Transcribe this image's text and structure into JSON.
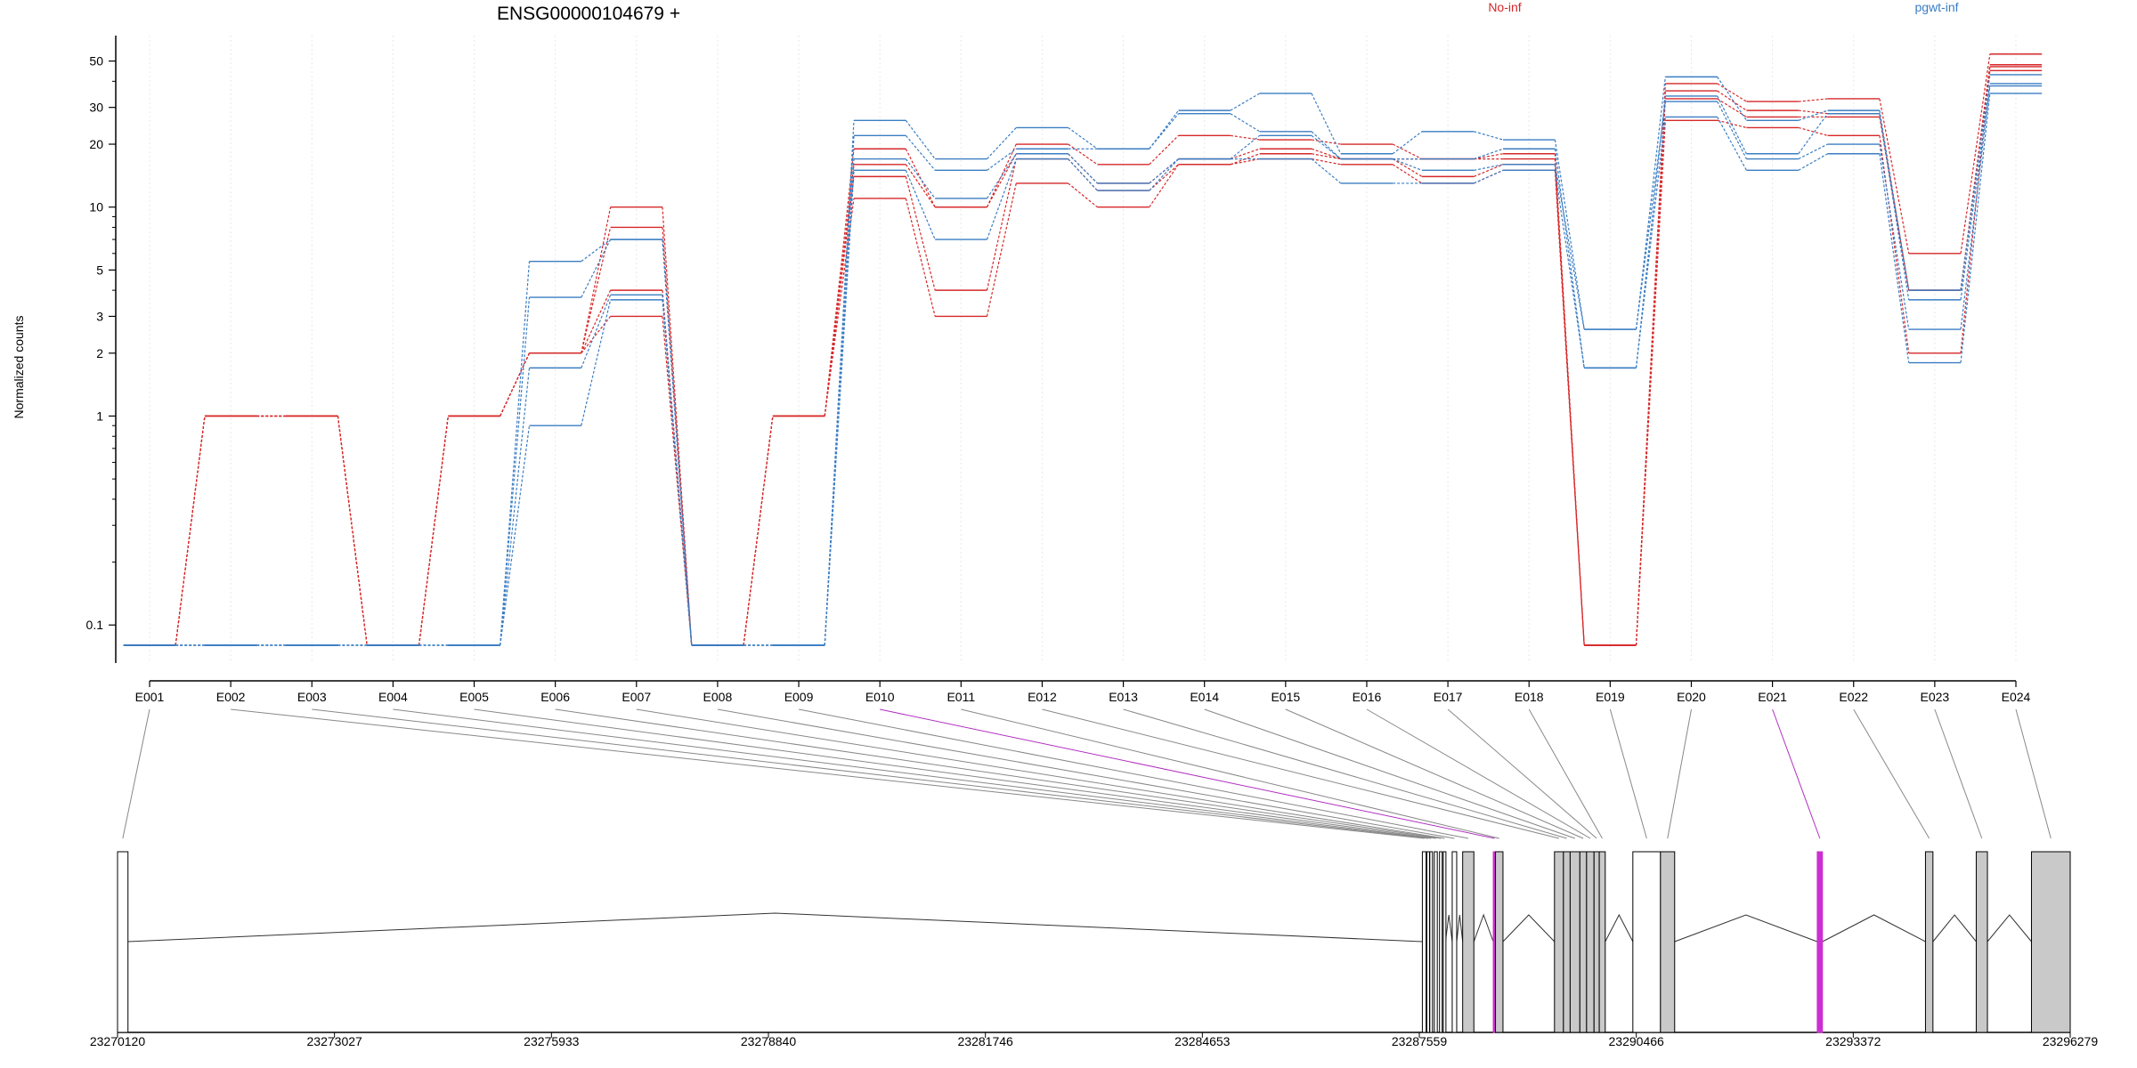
{
  "chart_data": {
    "type": "line",
    "title": "ENSG00000104679 +",
    "ylabel": "Normalized counts",
    "xlabel": "",
    "y_scale": "log",
    "ylim": [
      0.08,
      60
    ],
    "y_ticks": [
      0.1,
      1,
      2,
      3,
      5,
      10,
      20,
      30,
      50
    ],
    "y_tick_labels": [
      "0.1",
      "1",
      "2",
      "3",
      "5",
      "10",
      "20",
      "30",
      "50"
    ],
    "grid": true,
    "categories": [
      "E001",
      "E002",
      "E003",
      "E004",
      "E005",
      "E006",
      "E007",
      "E008",
      "E009",
      "E010",
      "E011",
      "E012",
      "E013",
      "E014",
      "E015",
      "E016",
      "E017",
      "E018",
      "E019",
      "E020",
      "E021",
      "E022",
      "E023",
      "E024"
    ],
    "legend": [
      {
        "name": "No-inf",
        "color": "#d62728"
      },
      {
        "name": "pgwt-inf",
        "color": "#3a7dc3"
      }
    ],
    "series": [
      {
        "group": "No-inf",
        "color": "#d62728",
        "values": [
          0.08,
          1,
          1,
          0.08,
          1,
          2,
          10,
          0.08,
          1,
          11,
          3,
          13,
          10,
          16,
          17,
          16,
          13,
          15,
          0.08,
          26,
          24,
          22,
          2,
          47
        ]
      },
      {
        "group": "No-inf",
        "color": "#d62728",
        "values": [
          0.08,
          1,
          1,
          0.08,
          1,
          2,
          8,
          0.08,
          1,
          14,
          4,
          17,
          12,
          16,
          18,
          17,
          14,
          16,
          0.08,
          33,
          27,
          27,
          4,
          45
        ]
      },
      {
        "group": "No-inf",
        "color": "#d62728",
        "values": [
          0.08,
          1,
          1,
          0.08,
          1,
          2,
          4,
          0.08,
          1,
          16,
          10,
          18,
          13,
          17,
          19,
          17,
          17,
          17,
          0.08,
          36,
          29,
          28,
          4,
          48
        ]
      },
      {
        "group": "No-inf",
        "color": "#d62728",
        "values": [
          0.08,
          1,
          1,
          0.08,
          1,
          2,
          3,
          0.08,
          1,
          19,
          10,
          20,
          16,
          22,
          21,
          20,
          17,
          18,
          0.08,
          39,
          32,
          33,
          6,
          54
        ]
      },
      {
        "group": "pgwt-inf",
        "color": "#3a7dc3",
        "values": [
          0.08,
          0.08,
          0.08,
          0.08,
          0.08,
          0.9,
          3.6,
          0.08,
          0.08,
          15,
          7,
          17,
          12,
          17,
          17,
          13,
          13,
          15,
          1.7,
          27,
          15,
          18,
          1.8,
          35
        ]
      },
      {
        "group": "pgwt-inf",
        "color": "#3a7dc3",
        "values": [
          0.08,
          0.08,
          0.08,
          0.08,
          0.08,
          1.7,
          3.8,
          0.08,
          0.08,
          17,
          11,
          18,
          13,
          17,
          22,
          17,
          15,
          16,
          2.6,
          32,
          17,
          20,
          2.6,
          38
        ]
      },
      {
        "group": "pgwt-inf",
        "color": "#3a7dc3",
        "values": [
          0.08,
          0.08,
          0.08,
          0.08,
          0.08,
          3.7,
          7,
          0.08,
          0.08,
          22,
          15,
          19,
          19,
          28,
          23,
          17,
          17,
          19,
          1.7,
          34,
          18,
          28,
          3.6,
          39
        ]
      },
      {
        "group": "pgwt-inf",
        "color": "#3a7dc3",
        "values": [
          0.08,
          0.08,
          0.08,
          0.08,
          0.08,
          5.5,
          7,
          0.08,
          0.08,
          26,
          17,
          24,
          19,
          29,
          35,
          18,
          23,
          21,
          2.6,
          42,
          26,
          29,
          4,
          43
        ]
      }
    ],
    "gene_model": {
      "coordinate_labels": [
        "23270120",
        "23273027",
        "23275933",
        "23278840",
        "23281746",
        "23284653",
        "23287559",
        "23290466",
        "23293372",
        "23296279"
      ],
      "coord_range": [
        23270120,
        23296279
      ],
      "exons": [
        {
          "id": "E001",
          "start": 23270120,
          "end": 23270260,
          "expressed": false,
          "highlighted": false
        },
        {
          "id": "E002",
          "start": 23287600,
          "end": 23287650,
          "expressed": false,
          "highlighted": false
        },
        {
          "id": "E003",
          "start": 23287660,
          "end": 23287690,
          "expressed": false,
          "highlighted": false
        },
        {
          "id": "E004",
          "start": 23287700,
          "end": 23287730,
          "expressed": false,
          "highlighted": false
        },
        {
          "id": "E005",
          "start": 23287760,
          "end": 23287800,
          "expressed": false,
          "highlighted": false
        },
        {
          "id": "E006",
          "start": 23287830,
          "end": 23287860,
          "expressed": false,
          "highlighted": false
        },
        {
          "id": "E007",
          "start": 23287880,
          "end": 23287910,
          "expressed": false,
          "highlighted": false
        },
        {
          "id": "E008",
          "start": 23288000,
          "end": 23288060,
          "expressed": false,
          "highlighted": false
        },
        {
          "id": "E009",
          "start": 23288140,
          "end": 23288290,
          "expressed": true,
          "highlighted": false
        },
        {
          "id": "E010",
          "start": 23288550,
          "end": 23288580,
          "expressed": false,
          "highlighted": true
        },
        {
          "id": "E011",
          "start": 23288580,
          "end": 23288680,
          "expressed": true,
          "highlighted": false
        },
        {
          "id": "E012",
          "start": 23289370,
          "end": 23289490,
          "expressed": true,
          "highlighted": false
        },
        {
          "id": "E013",
          "start": 23289490,
          "end": 23289580,
          "expressed": true,
          "highlighted": false
        },
        {
          "id": "E014",
          "start": 23289580,
          "end": 23289710,
          "expressed": true,
          "highlighted": false
        },
        {
          "id": "E015",
          "start": 23289710,
          "end": 23289800,
          "expressed": true,
          "highlighted": false
        },
        {
          "id": "E016",
          "start": 23289800,
          "end": 23289900,
          "expressed": true,
          "highlighted": false
        },
        {
          "id": "E017",
          "start": 23289900,
          "end": 23289970,
          "expressed": true,
          "highlighted": false
        },
        {
          "id": "E018",
          "start": 23289970,
          "end": 23290050,
          "expressed": true,
          "highlighted": false
        },
        {
          "id": "E019",
          "start": 23290420,
          "end": 23290790,
          "expressed": false,
          "highlighted": false
        },
        {
          "id": "E020",
          "start": 23290790,
          "end": 23290980,
          "expressed": true,
          "highlighted": false
        },
        {
          "id": "E021",
          "start": 23292890,
          "end": 23292960,
          "expressed": false,
          "highlighted": true
        },
        {
          "id": "E022",
          "start": 23294340,
          "end": 23294440,
          "expressed": true,
          "highlighted": false
        },
        {
          "id": "E023",
          "start": 23295020,
          "end": 23295170,
          "expressed": true,
          "highlighted": false
        },
        {
          "id": "E024",
          "start": 23295760,
          "end": 23296279,
          "expressed": true,
          "highlighted": false
        }
      ]
    }
  }
}
